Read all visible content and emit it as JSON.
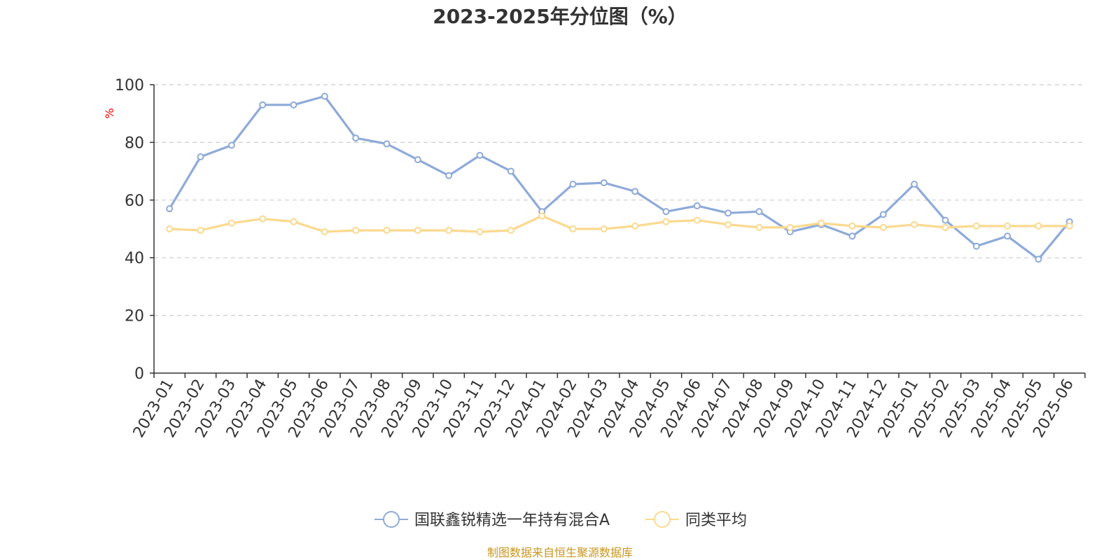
{
  "chart_data": {
    "type": "line",
    "title": "2023-2025年分位图（%）",
    "ylabel": "%",
    "xlabel": "",
    "ylim": [
      0,
      100
    ],
    "yticks": [
      0,
      20,
      40,
      60,
      80,
      100
    ],
    "grid": true,
    "legend_position": "bottom-center",
    "categories": [
      "2023-01",
      "2023-02",
      "2023-03",
      "2023-04",
      "2023-05",
      "2023-06",
      "2023-07",
      "2023-08",
      "2023-09",
      "2023-10",
      "2023-11",
      "2023-12",
      "2024-01",
      "2024-02",
      "2024-03",
      "2024-04",
      "2024-05",
      "2024-06",
      "2024-07",
      "2024-08",
      "2024-09",
      "2024-10",
      "2024-11",
      "2024-12",
      "2025-01",
      "2025-02",
      "2025-03",
      "2025-04",
      "2025-05",
      "2025-06"
    ],
    "series": [
      {
        "name": "国联鑫锐精选一年持有混合A",
        "color": "#8eaad8",
        "values": [
          57,
          75,
          79,
          93,
          93,
          96,
          81.5,
          79.5,
          74,
          68.5,
          75.5,
          70,
          56,
          65.5,
          66,
          63,
          56,
          58,
          55.5,
          56,
          49,
          51.5,
          47.5,
          55,
          65.5,
          53,
          44,
          47.5,
          39.5,
          52.5
        ]
      },
      {
        "name": "同类平均",
        "color": "#fbd98e",
        "values": [
          50,
          49.5,
          52,
          53.5,
          52.5,
          49,
          49.5,
          49.5,
          49.5,
          49.5,
          49,
          49.5,
          54.5,
          50,
          50,
          51,
          52.5,
          53,
          51.5,
          50.5,
          50.5,
          52,
          51,
          50.5,
          51.5,
          50.5,
          51,
          51,
          51,
          51
        ]
      }
    ]
  },
  "footer": {
    "source": "制图数据来自恒生聚源数据库"
  }
}
